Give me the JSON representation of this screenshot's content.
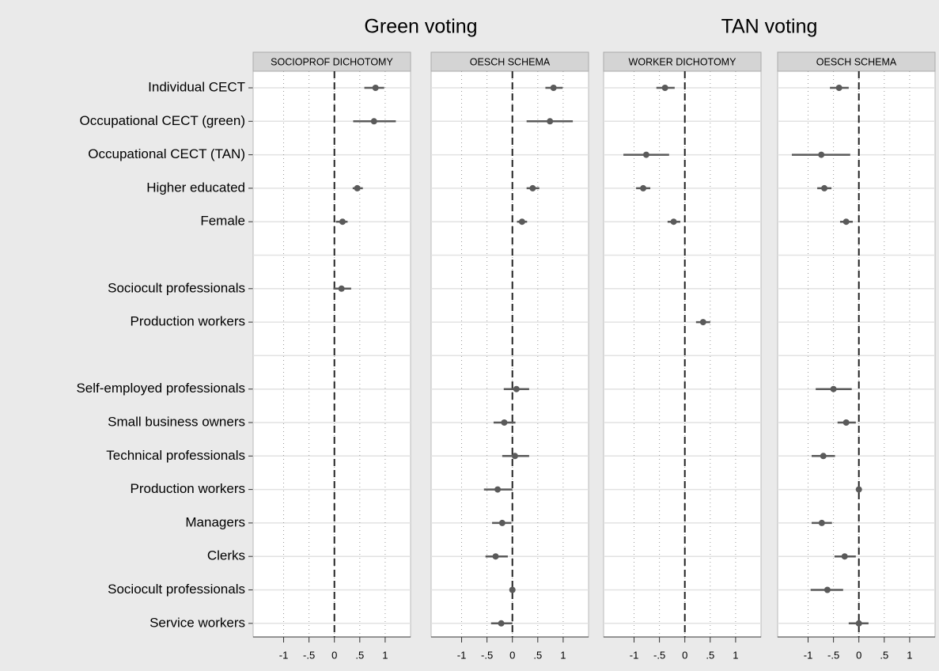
{
  "chart_data": {
    "type": "coefplot",
    "group_titles": [
      "Green voting",
      "TAN voting"
    ],
    "categories": [
      "Individual CECT",
      "Occupational CECT (green)",
      "Occupational CECT (TAN)",
      "Higher educated",
      "Female",
      null,
      "Sociocult professionals",
      "Production workers",
      null,
      "Self-employed professionals",
      "Small business owners",
      "Technical professionals",
      "Production workers",
      "Managers",
      "Clerks",
      "Sociocult professionals",
      "Service workers"
    ],
    "xlim": [
      -1.6,
      1.5
    ],
    "xticks": [
      -1,
      {
        "value": -0.5,
        "label": "-.5"
      },
      0,
      {
        "value": 0.5,
        "label": ".5"
      },
      1
    ],
    "xline": 0,
    "color": "#5a5a5a",
    "panels": [
      {
        "title": "SOCIOPROF DICHOTOMY",
        "values": [
          0.81,
          0.78,
          null,
          0.45,
          0.16,
          null,
          0.14,
          null,
          null,
          null,
          null,
          null,
          null,
          null,
          null,
          null,
          null
        ],
        "ci_low": [
          0.59,
          0.37,
          null,
          0.36,
          0.03,
          null,
          -0.02,
          null,
          null,
          null,
          null,
          null,
          null,
          null,
          null,
          null,
          null
        ],
        "ci_high": [
          0.98,
          1.21,
          null,
          0.56,
          0.26,
          null,
          0.33,
          null,
          null,
          null,
          null,
          null,
          null,
          null,
          null,
          null,
          null
        ]
      },
      {
        "title": "OESCH SCHEMA",
        "values": [
          0.81,
          0.74,
          null,
          0.4,
          0.19,
          null,
          null,
          null,
          null,
          0.08,
          -0.16,
          0.05,
          -0.29,
          -0.2,
          -0.33,
          0,
          -0.22
        ],
        "ci_low": [
          0.65,
          0.28,
          null,
          0.28,
          0.09,
          null,
          null,
          null,
          null,
          -0.17,
          -0.37,
          -0.2,
          -0.56,
          -0.4,
          -0.53,
          0,
          -0.42
        ],
        "ci_high": [
          0.99,
          1.19,
          null,
          0.53,
          0.29,
          null,
          null,
          null,
          null,
          0.33,
          0.06,
          0.33,
          0,
          -0.02,
          -0.09,
          0,
          0
        ]
      },
      {
        "title": "WORKER DICHOTOMY",
        "values": [
          -0.39,
          null,
          -0.76,
          -0.82,
          -0.22,
          null,
          null,
          0.36,
          null,
          null,
          null,
          null,
          null,
          null,
          null,
          null,
          null
        ],
        "ci_low": [
          -0.56,
          null,
          -1.21,
          -0.96,
          -0.34,
          null,
          null,
          0.22,
          null,
          null,
          null,
          null,
          null,
          null,
          null,
          null,
          null
        ],
        "ci_high": [
          -0.2,
          null,
          -0.31,
          -0.68,
          -0.09,
          null,
          null,
          0.5,
          null,
          null,
          null,
          null,
          null,
          null,
          null,
          null,
          null
        ]
      },
      {
        "title": "OESCH SCHEMA",
        "values": [
          -0.39,
          null,
          -0.74,
          -0.68,
          -0.25,
          null,
          null,
          null,
          null,
          -0.5,
          -0.25,
          -0.7,
          0,
          -0.73,
          -0.28,
          -0.62,
          0
        ],
        "ci_low": [
          -0.57,
          null,
          -1.32,
          -0.82,
          -0.37,
          null,
          null,
          null,
          null,
          -0.85,
          -0.42,
          -0.93,
          0,
          -0.93,
          -0.48,
          -0.95,
          -0.2
        ],
        "ci_high": [
          -0.2,
          null,
          -0.17,
          -0.54,
          -0.12,
          null,
          null,
          null,
          null,
          -0.14,
          -0.06,
          -0.47,
          0,
          -0.53,
          -0.06,
          -0.31,
          0.19
        ]
      }
    ]
  }
}
